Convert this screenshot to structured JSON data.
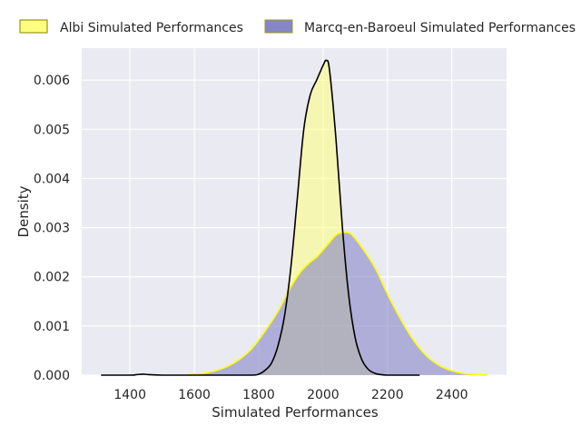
{
  "chart_data": {
    "type": "area",
    "title": "",
    "xlabel": "Simulated Performances",
    "ylabel": "Density",
    "xlim": [
      1250,
      2570
    ],
    "ylim": [
      0,
      0.00665
    ],
    "grid": true,
    "legend_placement": "top, outside plot, horizontal",
    "xticks": [
      1400,
      1600,
      1800,
      2000,
      2200,
      2400
    ],
    "xtick_labels": [
      "1400",
      "1600",
      "1800",
      "2000",
      "2200",
      "2400"
    ],
    "yticks": [
      0,
      0.001,
      0.002,
      0.003,
      0.004,
      0.005,
      0.006
    ],
    "ytick_labels": [
      "0.000",
      "0.001",
      "0.002",
      "0.003",
      "0.004",
      "0.005",
      "0.006"
    ],
    "colors": {
      "background": "#eaeaf2",
      "grid": "#ffffff",
      "albi_fill": "#ffff7f",
      "albi_line": "#000000",
      "marcq_fill": "#8686c6",
      "marcq_line": "#ffff00"
    },
    "series": [
      {
        "name": "Albi Simulated Performances",
        "x": [
          1310,
          1400,
          1420,
          1440,
          1460,
          1500,
          1600,
          1700,
          1780,
          1800,
          1820,
          1840,
          1860,
          1880,
          1900,
          1920,
          1940,
          1960,
          1980,
          2000,
          2010,
          2020,
          2040,
          2060,
          2080,
          2100,
          2120,
          2140,
          2160,
          2180,
          2200,
          2250,
          2300
        ],
        "y": [
          0,
          0,
          1e-05,
          2e-05,
          1e-05,
          0,
          0,
          0,
          0,
          2e-05,
          0.0001,
          0.00025,
          0.0006,
          0.0012,
          0.0022,
          0.0036,
          0.005,
          0.0057,
          0.006,
          0.0063,
          0.0064,
          0.0062,
          0.0048,
          0.003,
          0.0016,
          0.00075,
          0.00032,
          0.00012,
          4e-05,
          1e-05,
          0,
          0,
          0
        ]
      },
      {
        "name": "Marcq-en-Baroeul Simulated Performances",
        "x": [
          1580,
          1620,
          1660,
          1700,
          1740,
          1780,
          1820,
          1860,
          1900,
          1930,
          1960,
          1980,
          2000,
          2020,
          2040,
          2060,
          2075,
          2090,
          2120,
          2160,
          2200,
          2240,
          2280,
          2320,
          2360,
          2400,
          2440,
          2480,
          2510
        ],
        "y": [
          1e-05,
          3e-05,
          8e-05,
          0.00017,
          0.00032,
          0.00055,
          0.0009,
          0.0013,
          0.0018,
          0.0021,
          0.0023,
          0.0024,
          0.00255,
          0.0027,
          0.00285,
          0.0029,
          0.0029,
          0.00285,
          0.0026,
          0.0022,
          0.00165,
          0.00115,
          0.00072,
          0.0004,
          0.0002,
          9e-05,
          3e-05,
          1e-05,
          0
        ]
      }
    ]
  }
}
